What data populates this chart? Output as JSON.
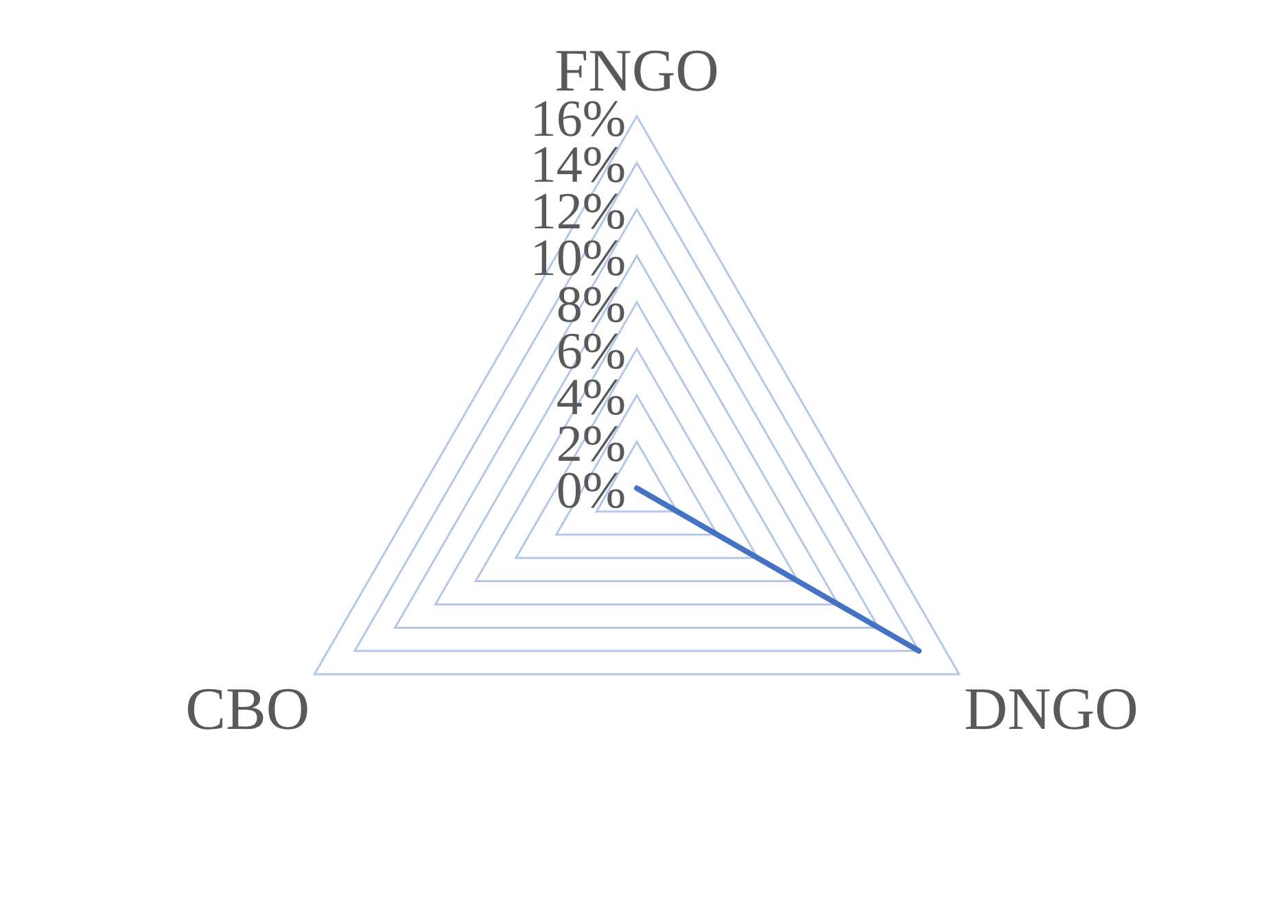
{
  "chart_data": {
    "type": "radar",
    "categories": [
      "FNGO",
      "DNGO",
      "CBO"
    ],
    "series": [
      {
        "color": "#4472c4",
        "values": [
          0,
          14,
          0
        ]
      }
    ],
    "ylim": [
      0,
      16
    ],
    "yticks": [
      {
        "value": 0,
        "label": "0%"
      },
      {
        "value": 2,
        "label": "2%"
      },
      {
        "value": 4,
        "label": "4%"
      },
      {
        "value": 6,
        "label": "6%"
      },
      {
        "value": 8,
        "label": "8%"
      },
      {
        "value": 10,
        "label": "10%"
      },
      {
        "value": 12,
        "label": "12%"
      },
      {
        "value": 14,
        "label": "14%"
      },
      {
        "value": 16,
        "label": "16%"
      }
    ],
    "grid": true,
    "legend": false,
    "marker": "none",
    "line_style": "solid"
  }
}
